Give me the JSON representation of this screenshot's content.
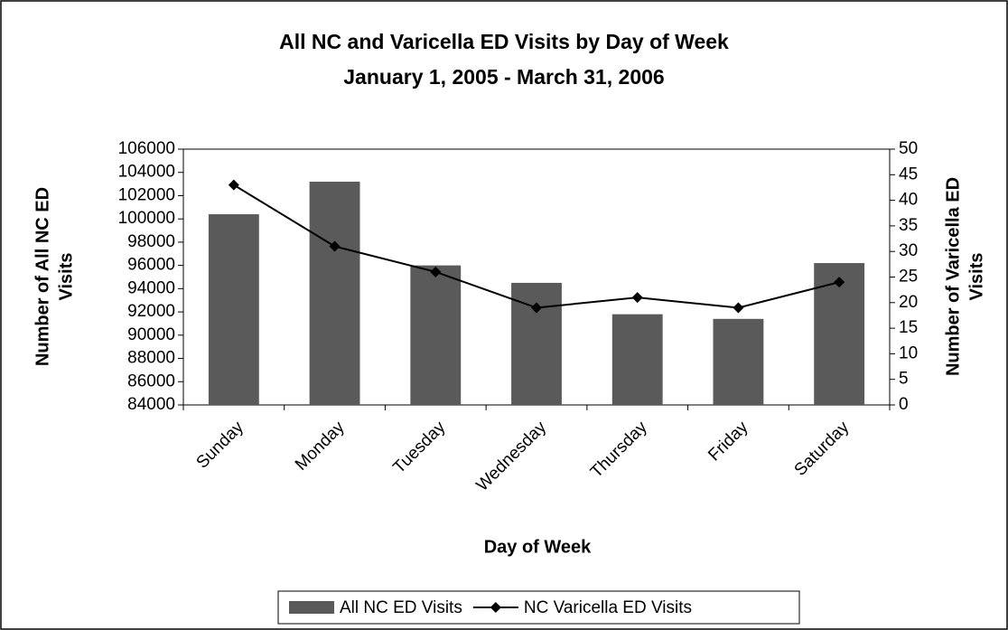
{
  "chart_data": {
    "type": "bar_line",
    "title": "All NC and Varicella ED Visits by Day of Week",
    "subtitle": "January 1, 2005 - March 31, 2006",
    "xlabel": "Day of Week",
    "ylabel": [
      "Number of All NC ED",
      "Visits"
    ],
    "y2label": [
      "Number of Varicella ED",
      "Visits"
    ],
    "categories": [
      "Sunday",
      "Monday",
      "Tuesday",
      "Wednesday",
      "Thursday",
      "Friday",
      "Saturday"
    ],
    "series": [
      {
        "name": "All NC ED Visits",
        "type": "bar",
        "color": "#5a5a5a",
        "values": [
          100400,
          103200,
          96000,
          94500,
          91800,
          91400,
          96200
        ]
      },
      {
        "name": "NC Varicella ED Visits",
        "type": "line",
        "axis": "y2",
        "color": "#000000",
        "values": [
          43,
          31,
          26,
          19,
          21,
          19,
          24
        ]
      }
    ],
    "ylim": [
      84000,
      106000
    ],
    "yticks": [
      84000,
      86000,
      88000,
      90000,
      92000,
      94000,
      96000,
      98000,
      100000,
      102000,
      104000,
      106000
    ],
    "y2lim": [
      0,
      50
    ],
    "y2ticks": [
      0,
      5,
      10,
      15,
      20,
      25,
      30,
      35,
      40,
      45,
      50
    ],
    "legend": "bottom"
  }
}
